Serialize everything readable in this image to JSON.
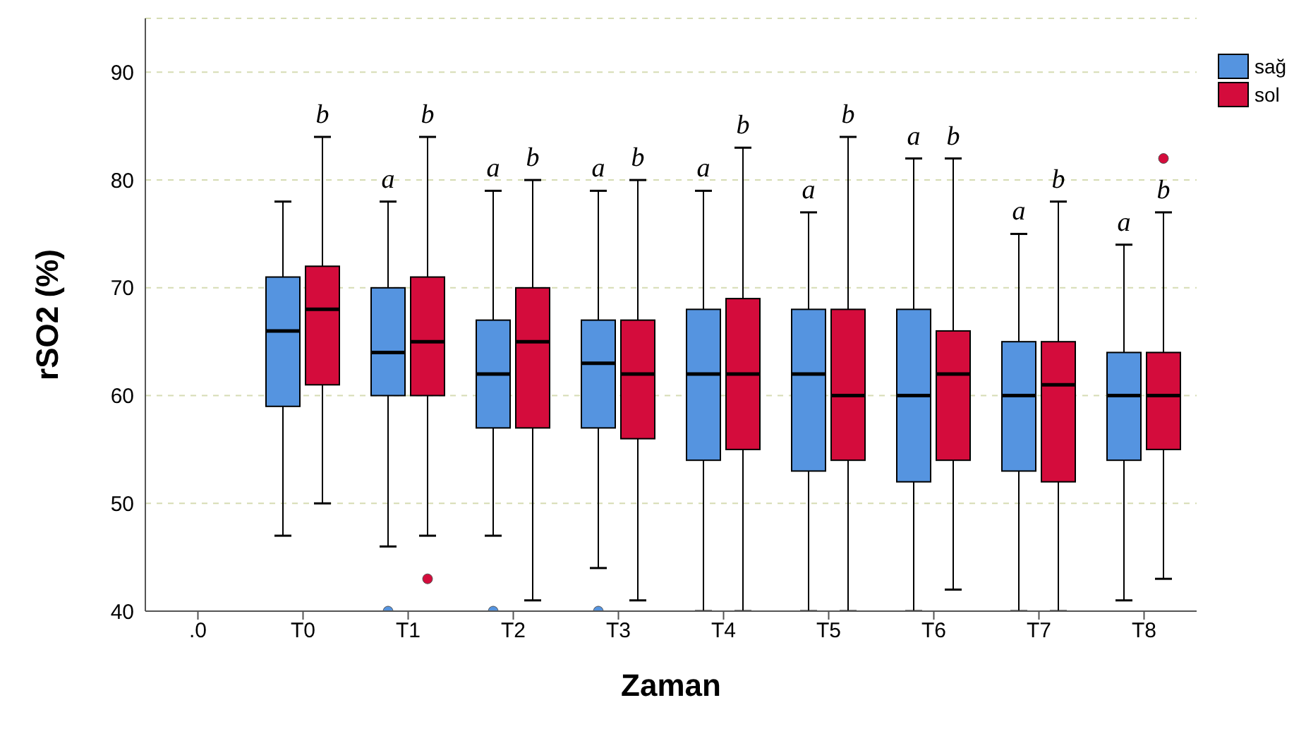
{
  "chart_data": {
    "type": "box",
    "xlabel": "Zaman",
    "ylabel": "rSO2 (%)",
    "categories": [
      ".0",
      "T0",
      "T1",
      "T2",
      "T3",
      "T4",
      "T5",
      "T6",
      "T7",
      "T8"
    ],
    "series": [
      {
        "name": "sağ",
        "color": "#5594e0",
        "boxes": [
          null,
          {
            "low": 47,
            "q1": 59,
            "median": 66,
            "q3": 71,
            "high": 78
          },
          {
            "low": 46,
            "q1": 60,
            "median": 64,
            "q3": 70,
            "high": 78,
            "outliers": [
              40
            ]
          },
          {
            "low": 47,
            "q1": 57,
            "median": 62,
            "q3": 67,
            "high": 79,
            "outliers": [
              40
            ]
          },
          {
            "low": 44,
            "q1": 57,
            "median": 63,
            "q3": 67,
            "high": 79,
            "outliers": [
              40
            ]
          },
          {
            "low": 40,
            "q1": 54,
            "median": 62,
            "q3": 68,
            "high": 79
          },
          {
            "low": 40,
            "q1": 53,
            "median": 62,
            "q3": 68,
            "high": 77
          },
          {
            "low": 40,
            "q1": 52,
            "median": 60,
            "q3": 68,
            "high": 82
          },
          {
            "low": 40,
            "q1": 53,
            "median": 60,
            "q3": 65,
            "high": 75
          },
          {
            "low": 41,
            "q1": 54,
            "median": 60,
            "q3": 64,
            "high": 74
          }
        ]
      },
      {
        "name": "sol",
        "color": "#d40c3c",
        "boxes": [
          null,
          {
            "low": 50,
            "q1": 61,
            "median": 68,
            "q3": 72,
            "high": 84
          },
          {
            "low": 47,
            "q1": 60,
            "median": 65,
            "q3": 71,
            "high": 84,
            "outliers": [
              43
            ]
          },
          {
            "low": 41,
            "q1": 57,
            "median": 65,
            "q3": 70,
            "high": 80
          },
          {
            "low": 41,
            "q1": 56,
            "median": 62,
            "q3": 67,
            "high": 80
          },
          {
            "low": 40,
            "q1": 55,
            "median": 62,
            "q3": 69,
            "high": 83
          },
          {
            "low": 40,
            "q1": 54,
            "median": 60,
            "q3": 68,
            "high": 84
          },
          {
            "low": 42,
            "q1": 54,
            "median": 62,
            "q3": 66,
            "high": 82
          },
          {
            "low": 40,
            "q1": 52,
            "median": 61,
            "q3": 65,
            "high": 78
          },
          {
            "low": 43,
            "q1": 55,
            "median": 60,
            "q3": 64,
            "high": 77,
            "outliers": [
              82
            ]
          }
        ]
      }
    ],
    "ylim": [
      40,
      95
    ],
    "yticks": [
      40,
      50,
      60,
      70,
      80,
      90
    ],
    "grid": "y",
    "legend": "top right",
    "annotations": [
      "b",
      "a",
      "b",
      "a",
      "b",
      "a",
      "b",
      "a",
      "b",
      "a",
      "b",
      "a",
      "b",
      "a",
      "b",
      "a",
      "b"
    ]
  }
}
